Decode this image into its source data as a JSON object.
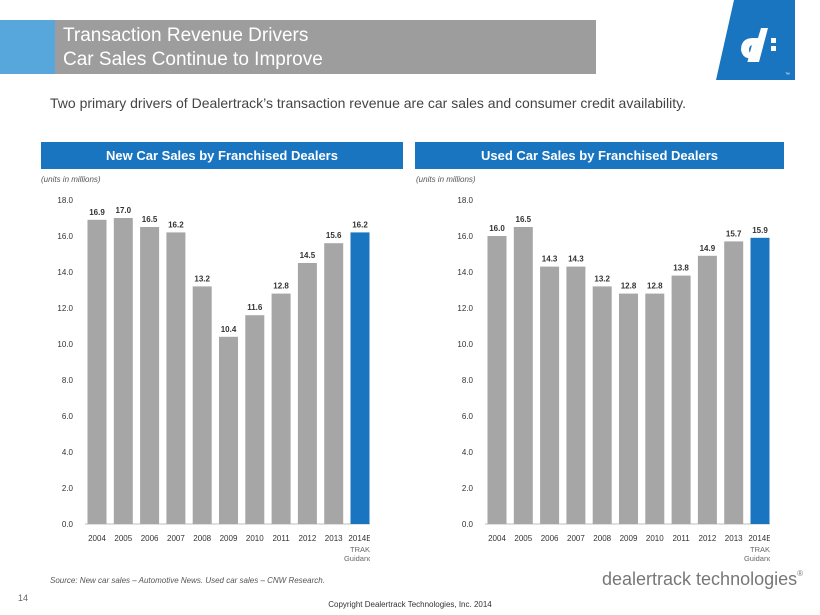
{
  "header": {
    "title_line1": "Transaction Revenue Drivers",
    "title_line2": "Car Sales Continue to Improve",
    "accent_color": "#57a7dc",
    "bar_color": "#9d9d9d"
  },
  "logo": {
    "text": "dt",
    "tm": "™",
    "color": "#1a75c0"
  },
  "intro": "Two primary drivers of Dealertrack’s transaction revenue are car sales and consumer credit availability.",
  "charts": {
    "new": {
      "header": "New Car Sales by Franchised Dealers",
      "units": "(units in millions)"
    },
    "used": {
      "header": "Used Car Sales by Franchised Dealers",
      "units": "(units in millions)"
    }
  },
  "chart_data": [
    {
      "type": "bar",
      "title": "New Car Sales by Franchised Dealers",
      "units": "(units in millions)",
      "categories": [
        "2004",
        "2005",
        "2006",
        "2007",
        "2008",
        "2009",
        "2010",
        "2011",
        "2012",
        "2013",
        "2014E"
      ],
      "values": [
        16.9,
        17.0,
        16.5,
        16.2,
        13.2,
        10.4,
        11.6,
        12.8,
        14.5,
        15.6,
        16.2
      ],
      "value_labels": [
        "16.9",
        "17.0",
        "16.5",
        "16.2",
        "13.2",
        "10.4",
        "11.6",
        "12.8",
        "14.5",
        "15.6",
        "16.2"
      ],
      "yticks": [
        "0.0",
        "2.0",
        "4.0",
        "6.0",
        "8.0",
        "10.0",
        "12.0",
        "14.0",
        "16.0",
        "18.0"
      ],
      "ylim": [
        0,
        18
      ],
      "highlight_index": 10,
      "highlight_note": [
        "TRAK",
        "Guidance"
      ],
      "colors": {
        "bar": "#a6a6a6",
        "highlight": "#1a75c0"
      },
      "grid": false
    },
    {
      "type": "bar",
      "title": "Used Car Sales by Franchised Dealers",
      "units": "(units in millions)",
      "categories": [
        "2004",
        "2005",
        "2006",
        "2007",
        "2008",
        "2009",
        "2010",
        "2011",
        "2012",
        "2013",
        "2014E"
      ],
      "values": [
        16.0,
        16.5,
        14.3,
        14.3,
        13.2,
        12.8,
        12.8,
        13.8,
        14.9,
        15.7,
        15.9
      ],
      "value_labels": [
        "16.0",
        "16.5",
        "14.3",
        "14.3",
        "13.2",
        "12.8",
        "12.8",
        "13.8",
        "14.9",
        "15.7",
        "15.9"
      ],
      "yticks": [
        "0.0",
        "2.0",
        "4.0",
        "6.0",
        "8.0",
        "10.0",
        "12.0",
        "14.0",
        "16.0",
        "18.0"
      ],
      "ylim": [
        0,
        18
      ],
      "highlight_index": 10,
      "highlight_note": [
        "TRAK",
        "Guidance"
      ],
      "colors": {
        "bar": "#a6a6a6",
        "highlight": "#1a75c0"
      },
      "grid": false
    }
  ],
  "footer": {
    "source": "Source: New car sales – Automotive News. Used car sales – CNW Research.",
    "page_number": "14",
    "copyright": "Copyright Dealertrack Technologies, Inc. 2014",
    "brand": "dealertrack technologies",
    "brand_mark": "®"
  }
}
